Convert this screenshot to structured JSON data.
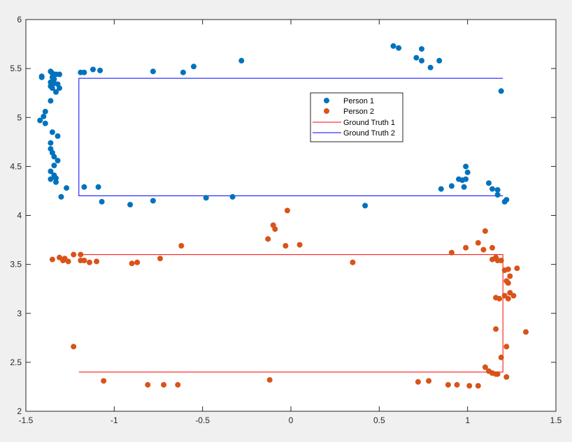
{
  "chart_data": {
    "type": "scatter",
    "title": "",
    "xlabel": "",
    "ylabel": "",
    "xlim": [
      -1.5,
      1.5
    ],
    "ylim": [
      2,
      6
    ],
    "xticks": [
      "-1.5",
      "-1",
      "-0.5",
      "0",
      "0.5",
      "1",
      "1.5"
    ],
    "yticks": [
      "2",
      "2.5",
      "3",
      "3.5",
      "4",
      "4.5",
      "5",
      "5.5",
      "6"
    ],
    "grid": false,
    "legend_position": "top-right-inner",
    "colors": {
      "person1": "#0072bd",
      "person2": "#d95319",
      "gt1": "#ff0000",
      "gt2": "#0000ff",
      "axes_bg": "#ffffff",
      "figure_bg": "#f0f0f0"
    },
    "series": [
      {
        "name": "Person 1",
        "kind": "scatter",
        "points": [
          [
            -1.41,
            5.42
          ],
          [
            -1.41,
            5.41
          ],
          [
            -1.36,
            5.47
          ],
          [
            -1.35,
            5.45
          ],
          [
            -1.33,
            5.44
          ],
          [
            -1.31,
            5.44
          ],
          [
            -1.35,
            5.41
          ],
          [
            -1.34,
            5.39
          ],
          [
            -1.36,
            5.36
          ],
          [
            -1.34,
            5.35
          ],
          [
            -1.32,
            5.34
          ],
          [
            -1.36,
            5.32
          ],
          [
            -1.35,
            5.3
          ],
          [
            -1.31,
            5.3
          ],
          [
            -1.33,
            5.26
          ],
          [
            -1.36,
            5.17
          ],
          [
            -1.19,
            5.46
          ],
          [
            -1.17,
            5.46
          ],
          [
            -1.12,
            5.49
          ],
          [
            -1.08,
            5.48
          ],
          [
            -0.78,
            5.47
          ],
          [
            -0.61,
            5.46
          ],
          [
            -0.55,
            5.52
          ],
          [
            -0.28,
            5.58
          ],
          [
            -1.4,
            5.01
          ],
          [
            -1.39,
            5.06
          ],
          [
            -1.42,
            4.97
          ],
          [
            -1.39,
            4.94
          ],
          [
            -1.35,
            4.85
          ],
          [
            -1.32,
            4.81
          ],
          [
            -1.36,
            4.74
          ],
          [
            -1.36,
            4.68
          ],
          [
            -1.35,
            4.64
          ],
          [
            -1.34,
            4.6
          ],
          [
            -1.32,
            4.56
          ],
          [
            -1.34,
            4.51
          ],
          [
            -1.36,
            4.45
          ],
          [
            -1.34,
            4.41
          ],
          [
            -1.36,
            4.37
          ],
          [
            -1.33,
            4.38
          ],
          [
            -1.33,
            4.34
          ],
          [
            -1.27,
            4.28
          ],
          [
            -1.3,
            4.19
          ],
          [
            -1.17,
            4.29
          ],
          [
            -1.09,
            4.29
          ],
          [
            -1.07,
            4.14
          ],
          [
            -0.91,
            4.11
          ],
          [
            -0.78,
            4.15
          ],
          [
            -0.48,
            4.18
          ],
          [
            -0.33,
            4.19
          ],
          [
            0.42,
            4.1
          ],
          [
            0.58,
            5.73
          ],
          [
            0.61,
            5.71
          ],
          [
            0.71,
            5.61
          ],
          [
            0.74,
            5.7
          ],
          [
            0.74,
            5.58
          ],
          [
            0.79,
            5.51
          ],
          [
            0.84,
            5.58
          ],
          [
            0.85,
            4.27
          ],
          [
            0.91,
            4.3
          ],
          [
            0.95,
            4.37
          ],
          [
            0.97,
            4.36
          ],
          [
            0.98,
            4.29
          ],
          [
            0.99,
            4.37
          ],
          [
            0.99,
            4.5
          ],
          [
            1.0,
            4.44
          ],
          [
            1.12,
            4.33
          ],
          [
            1.14,
            4.27
          ],
          [
            1.17,
            4.26
          ],
          [
            1.17,
            4.21
          ],
          [
            1.19,
            5.27
          ],
          [
            1.21,
            4.14
          ],
          [
            1.22,
            4.16
          ]
        ]
      },
      {
        "name": "Person 2",
        "kind": "scatter",
        "points": [
          [
            -1.35,
            3.55
          ],
          [
            -1.31,
            3.57
          ],
          [
            -1.28,
            3.56
          ],
          [
            -1.29,
            3.54
          ],
          [
            -1.26,
            3.53
          ],
          [
            -1.23,
            3.6
          ],
          [
            -1.19,
            3.6
          ],
          [
            -1.19,
            3.54
          ],
          [
            -1.17,
            3.54
          ],
          [
            -1.14,
            3.52
          ],
          [
            -1.1,
            3.53
          ],
          [
            -0.9,
            3.51
          ],
          [
            -0.87,
            3.52
          ],
          [
            -0.74,
            3.56
          ],
          [
            -0.62,
            3.69
          ],
          [
            -0.13,
            3.76
          ],
          [
            -0.1,
            3.9
          ],
          [
            -0.09,
            3.86
          ],
          [
            -0.03,
            3.69
          ],
          [
            -0.02,
            4.05
          ],
          [
            0.05,
            3.7
          ],
          [
            0.35,
            3.52
          ],
          [
            -1.23,
            2.66
          ],
          [
            -1.06,
            2.31
          ],
          [
            -0.81,
            2.27
          ],
          [
            -0.72,
            2.27
          ],
          [
            -0.64,
            2.27
          ],
          [
            -0.12,
            2.32
          ],
          [
            0.72,
            2.3
          ],
          [
            0.78,
            2.31
          ],
          [
            0.89,
            2.27
          ],
          [
            0.94,
            2.27
          ],
          [
            1.01,
            2.26
          ],
          [
            1.06,
            2.26
          ],
          [
            1.1,
            2.45
          ],
          [
            1.12,
            2.41
          ],
          [
            1.14,
            2.39
          ],
          [
            1.16,
            2.38
          ],
          [
            1.17,
            2.38
          ],
          [
            1.19,
            2.55
          ],
          [
            1.22,
            2.35
          ],
          [
            1.22,
            2.66
          ],
          [
            1.16,
            2.84
          ],
          [
            1.16,
            3.16
          ],
          [
            1.18,
            3.15
          ],
          [
            1.21,
            3.18
          ],
          [
            1.23,
            3.15
          ],
          [
            1.24,
            3.21
          ],
          [
            1.26,
            3.18
          ],
          [
            1.22,
            3.33
          ],
          [
            1.23,
            3.31
          ],
          [
            1.24,
            3.38
          ],
          [
            1.21,
            3.44
          ],
          [
            1.23,
            3.45
          ],
          [
            1.28,
            3.46
          ],
          [
            1.14,
            3.55
          ],
          [
            1.16,
            3.57
          ],
          [
            1.17,
            3.54
          ],
          [
            1.14,
            3.67
          ],
          [
            1.19,
            3.54
          ],
          [
            1.06,
            3.72
          ],
          [
            1.09,
            3.65
          ],
          [
            1.1,
            3.84
          ],
          [
            0.99,
            3.67
          ],
          [
            0.91,
            3.62
          ],
          [
            1.33,
            2.81
          ]
        ]
      },
      {
        "name": "Ground Truth 1",
        "kind": "line",
        "points": [
          [
            -1.2,
            2.4
          ],
          [
            1.2,
            2.4
          ],
          [
            1.2,
            3.6
          ],
          [
            -1.2,
            3.6
          ]
        ]
      },
      {
        "name": "Ground Truth 2",
        "kind": "line",
        "points": [
          [
            1.2,
            4.2
          ],
          [
            -1.2,
            4.2
          ],
          [
            -1.2,
            5.4
          ],
          [
            1.2,
            5.4
          ]
        ]
      }
    ]
  }
}
